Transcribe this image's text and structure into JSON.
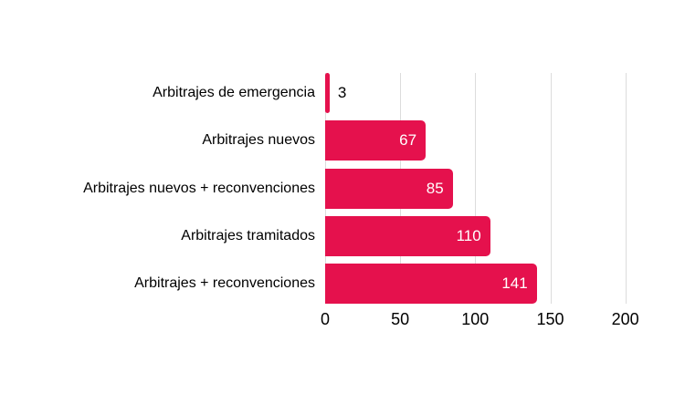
{
  "chart_data": {
    "type": "bar",
    "orientation": "horizontal",
    "categories": [
      "Arbitrajes de emergencia",
      "Arbitrajes nuevos",
      "Arbitrajes nuevos + reconvenciones",
      "Arbitrajes tramitados",
      "Arbitrajes + reconvenciones"
    ],
    "values": [
      3,
      67,
      85,
      110,
      141
    ],
    "xlim": [
      0,
      200
    ],
    "x_ticks": [
      0,
      50,
      100,
      150,
      200
    ],
    "grid": true,
    "legend": false,
    "title": "",
    "colors": {
      "bar": "#e5114d",
      "value_label_inside": "#ffffff",
      "value_label_outside": "#000000",
      "category_label": "#000000",
      "tick_label": "#000000",
      "gridline": "#dcdcdc",
      "background": "#ffffff"
    }
  }
}
